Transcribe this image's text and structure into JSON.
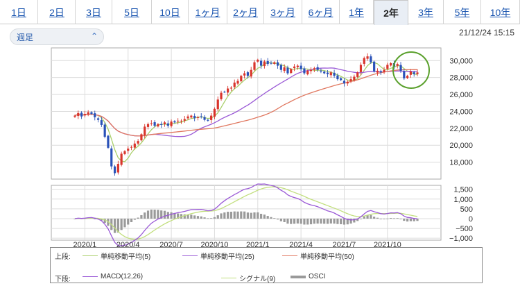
{
  "tabs": [
    {
      "label": "1日"
    },
    {
      "label": "2日"
    },
    {
      "label": "3日"
    },
    {
      "label": "5日"
    },
    {
      "label": "10日"
    },
    {
      "label": "1ヶ月"
    },
    {
      "label": "2ヶ月"
    },
    {
      "label": "3ヶ月"
    },
    {
      "label": "6ヶ月"
    },
    {
      "label": "1年"
    },
    {
      "label": "2年",
      "active": true
    },
    {
      "label": "3年"
    },
    {
      "label": "5年"
    },
    {
      "label": "10年"
    }
  ],
  "period_select": {
    "value": "週足",
    "icon": "chevron-updown-icon"
  },
  "datetime": "21/12/24 15:15",
  "colors": {
    "up": "#d9352c",
    "down": "#2a52b8",
    "ma5": "#a9cf6a",
    "ma25": "#9a59d6",
    "ma50": "#e0775f",
    "macd": "#9a59d6",
    "signal": "#c2df7e",
    "osci": "#9a9a9a",
    "highlight": "#5aa02c"
  },
  "legend": {
    "upper": {
      "label": "上段:",
      "items": [
        "単純移動平均(5)",
        "単純移動平均(25)",
        "単純移動平均(50)"
      ]
    },
    "lower": {
      "label": "下段:",
      "items": [
        "MACD(12,26)",
        "シグナル(9)",
        "OSCI"
      ]
    }
  },
  "chart_data": [
    {
      "type": "candlestick",
      "yticks": [
        "30,000",
        "28,000",
        "26,000",
        "24,000",
        "22,000",
        "20,000",
        "18,000"
      ],
      "ylim": [
        16000,
        31500
      ],
      "xticks": [
        "2020/1",
        "2020/4",
        "2020/7",
        "2020/10",
        "2021/1",
        "2021/4",
        "2021/7",
        "2021/10"
      ],
      "weeks": 104,
      "close": [
        23500,
        23800,
        23400,
        23700,
        23900,
        23700,
        23300,
        23000,
        22400,
        21000,
        19700,
        17500,
        16700,
        17800,
        19000,
        19300,
        19600,
        19800,
        20200,
        20500,
        21300,
        22200,
        22500,
        22600,
        22300,
        22500,
        22400,
        22700,
        22300,
        22800,
        22700,
        22900,
        22900,
        23100,
        23400,
        23500,
        23200,
        23300,
        23400,
        23000,
        22900,
        23500,
        24300,
        25400,
        26200,
        26300,
        26700,
        26800,
        27400,
        27600,
        28200,
        28500,
        28200,
        28900,
        29800,
        30100,
        29400,
        29900,
        29600,
        29700,
        29800,
        29400,
        28900,
        29200,
        28500,
        29000,
        29300,
        29400,
        29000,
        28500,
        28800,
        28900,
        29100,
        28900,
        28700,
        28500,
        28400,
        28600,
        28200,
        27800,
        27700,
        27300,
        27500,
        27800,
        28100,
        28600,
        29500,
        30300,
        30500,
        29800,
        28700,
        28800,
        28600,
        28900,
        29500,
        29700,
        29300,
        29600,
        28800,
        27900,
        28200,
        28700,
        28400,
        28600
      ],
      "series": [
        {
          "name": "単純移動平均(5)"
        },
        {
          "name": "単純移動平均(25)"
        },
        {
          "name": "単純移動平均(50)"
        }
      ]
    },
    {
      "type": "macd",
      "yticks": [
        "1,500",
        "1,000",
        "500",
        "0",
        "−500",
        "−1,000"
      ],
      "ylim": [
        -1100,
        1700
      ],
      "series": [
        {
          "name": "MACD(12,26)"
        },
        {
          "name": "シグナル(9)"
        },
        {
          "name": "OSCI"
        }
      ]
    }
  ]
}
